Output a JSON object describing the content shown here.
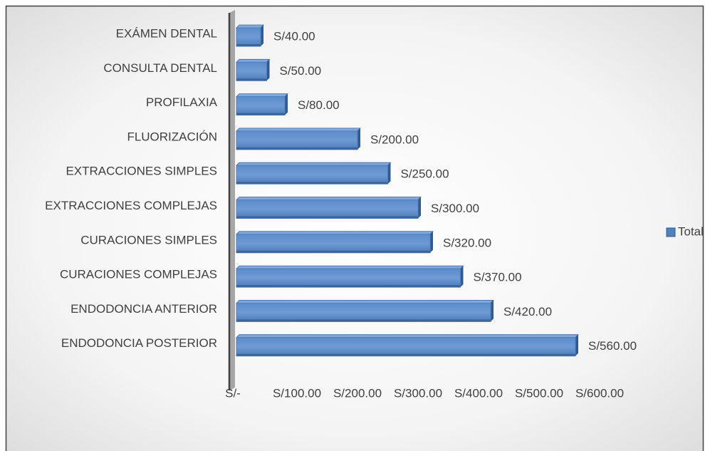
{
  "chart_data": {
    "type": "bar",
    "orientation": "horizontal",
    "categories": [
      "EXÁMEN DENTAL",
      "CONSULTA DENTAL",
      "PROFILAXIA",
      "FLUORIZACIÓN",
      "EXTRACCIONES SIMPLES",
      "EXTRACCIONES COMPLEJAS",
      "CURACIONES SIMPLES",
      "CURACIONES COMPLEJAS",
      "ENDODONCIA ANTERIOR",
      "ENDODONCIA POSTERIOR"
    ],
    "series": [
      {
        "name": "Total",
        "color": "#4f81bd",
        "values": [
          40,
          50,
          80,
          200,
          250,
          300,
          320,
          370,
          420,
          560
        ],
        "value_labels": [
          "S/40.00",
          "S/50.00",
          "S/80.00",
          "S/200.00",
          "S/250.00",
          "S/300.00",
          "S/320.00",
          "S/370.00",
          "S/420.00",
          "S/560.00"
        ]
      }
    ],
    "xlim": [
      0,
      600
    ],
    "xticks": [
      {
        "value": 0,
        "label": "S/-"
      },
      {
        "value": 100,
        "label": "S/100.00"
      },
      {
        "value": 200,
        "label": "S/200.00"
      },
      {
        "value": 300,
        "label": "S/300.00"
      },
      {
        "value": 400,
        "label": "S/400.00"
      },
      {
        "value": 500,
        "label": "S/500.00"
      },
      {
        "value": 600,
        "label": "S/600.00"
      }
    ],
    "legend": "right"
  }
}
